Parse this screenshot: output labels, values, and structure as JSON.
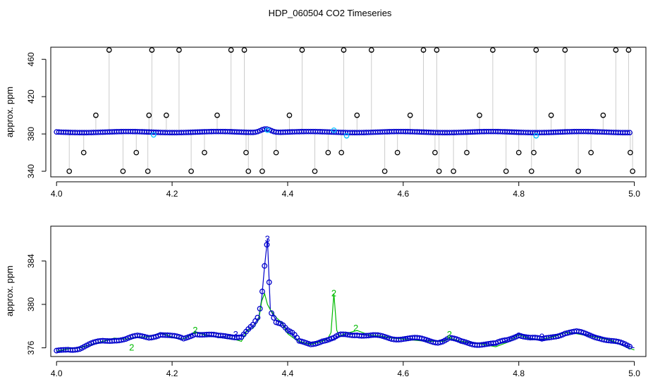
{
  "title": "HDP_060504  CO2 Timeseries",
  "chart_data": [
    {
      "type": "scatter",
      "title": "",
      "xlabel": "",
      "ylabel": "approx. ppm",
      "xlim": [
        3.99,
        5.02
      ],
      "ylim": [
        334,
        473
      ],
      "xticks": [
        4.0,
        4.2,
        4.4,
        4.6,
        4.8,
        5.0
      ],
      "xtick_labels": [
        "4.0",
        "4.2",
        "4.4",
        "4.6",
        "4.8",
        "5.0"
      ],
      "yticks": [
        340,
        380,
        420,
        460
      ],
      "ytick_labels": [
        "340",
        "380",
        "420",
        "460"
      ],
      "grid": false,
      "legend": "none",
      "baseline": 382,
      "colors": {
        "main": "#0000cc",
        "flagged": "#00bfff",
        "outlier": "#000000",
        "drop": "#999999"
      },
      "outliers": [
        {
          "x": 4.022,
          "y": 340
        },
        {
          "x": 4.047,
          "y": 360
        },
        {
          "x": 4.068,
          "y": 400
        },
        {
          "x": 4.091,
          "y": 470
        },
        {
          "x": 4.115,
          "y": 340
        },
        {
          "x": 4.138,
          "y": 360
        },
        {
          "x": 4.158,
          "y": 340
        },
        {
          "x": 4.16,
          "y": 400
        },
        {
          "x": 4.165,
          "y": 470
        },
        {
          "x": 4.19,
          "y": 400
        },
        {
          "x": 4.212,
          "y": 470
        },
        {
          "x": 4.233,
          "y": 340
        },
        {
          "x": 4.256,
          "y": 360
        },
        {
          "x": 4.278,
          "y": 400
        },
        {
          "x": 4.302,
          "y": 470
        },
        {
          "x": 4.325,
          "y": 470
        },
        {
          "x": 4.328,
          "y": 360
        },
        {
          "x": 4.332,
          "y": 340
        },
        {
          "x": 4.356,
          "y": 340
        },
        {
          "x": 4.38,
          "y": 360
        },
        {
          "x": 4.403,
          "y": 400
        },
        {
          "x": 4.425,
          "y": 470
        },
        {
          "x": 4.447,
          "y": 340
        },
        {
          "x": 4.47,
          "y": 360
        },
        {
          "x": 4.493,
          "y": 360
        },
        {
          "x": 4.497,
          "y": 470
        },
        {
          "x": 4.52,
          "y": 400
        },
        {
          "x": 4.545,
          "y": 470
        },
        {
          "x": 4.568,
          "y": 340
        },
        {
          "x": 4.59,
          "y": 360
        },
        {
          "x": 4.612,
          "y": 400
        },
        {
          "x": 4.635,
          "y": 470
        },
        {
          "x": 4.655,
          "y": 360
        },
        {
          "x": 4.658,
          "y": 470
        },
        {
          "x": 4.662,
          "y": 340
        },
        {
          "x": 4.687,
          "y": 340
        },
        {
          "x": 4.71,
          "y": 360
        },
        {
          "x": 4.732,
          "y": 400
        },
        {
          "x": 4.755,
          "y": 470
        },
        {
          "x": 4.778,
          "y": 340
        },
        {
          "x": 4.8,
          "y": 360
        },
        {
          "x": 4.822,
          "y": 340
        },
        {
          "x": 4.826,
          "y": 360
        },
        {
          "x": 4.83,
          "y": 470
        },
        {
          "x": 4.856,
          "y": 400
        },
        {
          "x": 4.88,
          "y": 470
        },
        {
          "x": 4.903,
          "y": 340
        },
        {
          "x": 4.925,
          "y": 360
        },
        {
          "x": 4.946,
          "y": 400
        },
        {
          "x": 4.968,
          "y": 470
        },
        {
          "x": 4.99,
          "y": 470
        },
        {
          "x": 4.993,
          "y": 360
        },
        {
          "x": 4.997,
          "y": 340
        }
      ],
      "flagged": [
        {
          "x": 4.168,
          "y": 379
        },
        {
          "x": 4.365,
          "y": 384
        },
        {
          "x": 4.48,
          "y": 384
        },
        {
          "x": 4.502,
          "y": 378
        },
        {
          "x": 4.83,
          "y": 378
        }
      ]
    },
    {
      "type": "line",
      "title": "",
      "xlabel": "",
      "ylabel": "approx. ppm",
      "xlim": [
        3.99,
        5.02
      ],
      "ylim": [
        375.2,
        387.2
      ],
      "xticks": [
        4.0,
        4.2,
        4.4,
        4.6,
        4.8,
        5.0
      ],
      "xtick_labels": [
        "4.0",
        "4.2",
        "4.4",
        "4.6",
        "4.8",
        "5.0"
      ],
      "yticks": [
        376,
        380,
        384
      ],
      "ytick_labels": [
        "376",
        "380",
        "384"
      ],
      "grid": false,
      "legend": "none",
      "series": [
        {
          "marker": "3",
          "color": "#0000cc",
          "x": [
            4.0,
            4.02,
            4.04,
            4.06,
            4.08,
            4.1,
            4.12,
            4.14,
            4.16,
            4.18,
            4.2,
            4.22,
            4.24,
            4.26,
            4.28,
            4.3,
            4.32,
            4.33,
            4.34,
            4.35,
            4.355,
            4.36,
            4.365,
            4.37,
            4.38,
            4.39,
            4.4,
            4.41,
            4.42,
            4.44,
            4.46,
            4.47,
            4.48,
            4.49,
            4.5,
            4.52,
            4.54,
            4.56,
            4.58,
            4.6,
            4.62,
            4.64,
            4.66,
            4.67,
            4.68,
            4.7,
            4.72,
            4.74,
            4.76,
            4.78,
            4.8,
            4.82,
            4.84,
            4.86,
            4.88,
            4.9,
            4.92,
            4.94,
            4.96,
            4.98,
            5.0
          ],
          "y": [
            375.6,
            375.9,
            376.0,
            376.3,
            376.6,
            376.8,
            376.8,
            377.0,
            377.0,
            377.3,
            377.0,
            376.8,
            377.4,
            377.2,
            377.0,
            377.1,
            377.1,
            377.6,
            378.0,
            378.8,
            380.5,
            383.5,
            386.0,
            379.5,
            378.5,
            378.3,
            377.6,
            377.2,
            376.5,
            376.4,
            376.7,
            376.7,
            376.8,
            377.1,
            377.2,
            377.3,
            377.1,
            377.0,
            376.9,
            376.9,
            376.8,
            376.7,
            376.6,
            376.7,
            376.9,
            376.5,
            376.4,
            376.4,
            376.3,
            376.7,
            377.3,
            376.9,
            376.7,
            377.1,
            377.4,
            377.4,
            377.2,
            377.0,
            376.6,
            376.3,
            376.0
          ]
        },
        {
          "marker": "2",
          "color": "#00bb00",
          "x": [
            4.0,
            4.02,
            4.04,
            4.06,
            4.08,
            4.1,
            4.12,
            4.14,
            4.16,
            4.18,
            4.2,
            4.22,
            4.24,
            4.26,
            4.28,
            4.3,
            4.32,
            4.33,
            4.34,
            4.35,
            4.355,
            4.36,
            4.365,
            4.37,
            4.38,
            4.39,
            4.4,
            4.41,
            4.42,
            4.44,
            4.46,
            4.47,
            4.475,
            4.48,
            4.485,
            4.49,
            4.5,
            4.52,
            4.54,
            4.56,
            4.58,
            4.6,
            4.62,
            4.64,
            4.66,
            4.67,
            4.68,
            4.7,
            4.72,
            4.74,
            4.76,
            4.78,
            4.8,
            4.82,
            4.84,
            4.86,
            4.88,
            4.9,
            4.92,
            4.94,
            4.96,
            4.98,
            5.0
          ],
          "y": [
            375.7,
            375.9,
            376.0,
            376.3,
            376.6,
            376.9,
            376.8,
            377.0,
            377.0,
            377.4,
            377.0,
            376.8,
            377.5,
            377.1,
            377.0,
            376.9,
            376.6,
            377.6,
            377.8,
            378.6,
            380.3,
            381.0,
            380.0,
            379.5,
            378.8,
            378.3,
            377.3,
            376.9,
            376.6,
            376.3,
            376.6,
            376.9,
            377.4,
            381.0,
            377.6,
            377.1,
            377.3,
            377.6,
            377.2,
            377.1,
            376.9,
            376.8,
            376.7,
            376.6,
            376.6,
            376.6,
            376.9,
            376.6,
            376.5,
            376.3,
            376.1,
            376.5,
            377.2,
            376.8,
            376.8,
            377.0,
            377.4,
            377.3,
            377.1,
            376.9,
            376.7,
            376.2,
            375.8
          ]
        }
      ],
      "point_labels": [
        {
          "x": 4.365,
          "y": 386.0,
          "text": "3",
          "series": 0
        },
        {
          "x": 4.48,
          "y": 381.0,
          "text": "2",
          "series": 1
        },
        {
          "x": 4.518,
          "y": 377.8,
          "text": "2",
          "series": 1
        },
        {
          "x": 4.68,
          "y": 377.2,
          "text": "2",
          "series": 1
        },
        {
          "x": 4.84,
          "y": 377.0,
          "text": "3",
          "series": 0
        },
        {
          "x": 4.31,
          "y": 377.2,
          "text": "3",
          "series": 0
        },
        {
          "x": 4.13,
          "y": 376.0,
          "text": "2",
          "series": 1
        },
        {
          "x": 4.24,
          "y": 377.6,
          "text": "2",
          "series": 1
        }
      ]
    }
  ]
}
